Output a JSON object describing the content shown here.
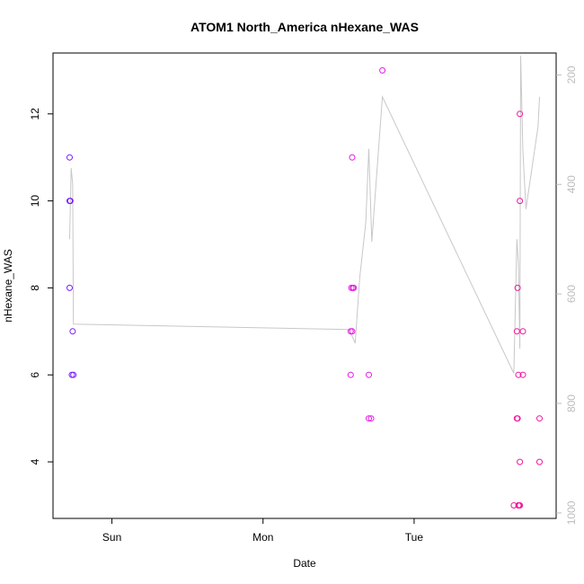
{
  "chart_data": {
    "type": "scatter",
    "title": "ATOM1 North_America nHexane_WAS",
    "xlabel": "Date",
    "ylabel": "nHexane_WAS",
    "x_ticks": [
      "Sun",
      "Mon",
      "Tue"
    ],
    "x_tick_values": [
      1.0,
      2.0,
      3.0
    ],
    "xlim": [
      0.61,
      3.94
    ],
    "ylim": [
      2.7,
      13.4
    ],
    "y_ticks": [
      4,
      6,
      8,
      10,
      12
    ],
    "right_axis": {
      "ticks": [
        200,
        400,
        600,
        800,
        1000
      ],
      "lim": [
        1010,
        160
      ],
      "color": "#bdbdbd"
    },
    "grid": false,
    "points": [
      {
        "x": 0.72,
        "y": 11,
        "color": "#7a1bff"
      },
      {
        "x": 0.72,
        "y": 10,
        "color": "#7a1bff"
      },
      {
        "x": 0.725,
        "y": 10,
        "color": "#7a1bff"
      },
      {
        "x": 0.72,
        "y": 8,
        "color": "#7a1bff"
      },
      {
        "x": 0.74,
        "y": 7,
        "color": "#7a1bff"
      },
      {
        "x": 0.735,
        "y": 6,
        "color": "#7a1bff"
      },
      {
        "x": 0.745,
        "y": 6,
        "color": "#7a1bff"
      },
      {
        "x": 2.59,
        "y": 11,
        "color": "#e619e6"
      },
      {
        "x": 2.585,
        "y": 8,
        "color": "#e619e6"
      },
      {
        "x": 2.595,
        "y": 8,
        "color": "#e619e6"
      },
      {
        "x": 2.6,
        "y": 8,
        "color": "#e619e6"
      },
      {
        "x": 2.58,
        "y": 7,
        "color": "#e619e6"
      },
      {
        "x": 2.59,
        "y": 7,
        "color": "#e619e6"
      },
      {
        "x": 2.58,
        "y": 6,
        "color": "#e619e6"
      },
      {
        "x": 2.7,
        "y": 6,
        "color": "#e619e6"
      },
      {
        "x": 2.7,
        "y": 5,
        "color": "#e619e6"
      },
      {
        "x": 2.715,
        "y": 5,
        "color": "#e619e6"
      },
      {
        "x": 2.79,
        "y": 13,
        "color": "#e619e6"
      },
      {
        "x": 3.7,
        "y": 12,
        "color": "#f2179e"
      },
      {
        "x": 3.7,
        "y": 10,
        "color": "#f2179e"
      },
      {
        "x": 3.685,
        "y": 8,
        "color": "#f2179e"
      },
      {
        "x": 3.68,
        "y": 7,
        "color": "#f2179e"
      },
      {
        "x": 3.72,
        "y": 7,
        "color": "#f2179e"
      },
      {
        "x": 3.69,
        "y": 6,
        "color": "#f2179e"
      },
      {
        "x": 3.72,
        "y": 6,
        "color": "#f2179e"
      },
      {
        "x": 3.68,
        "y": 5,
        "color": "#f2179e"
      },
      {
        "x": 3.685,
        "y": 5,
        "color": "#f2179e"
      },
      {
        "x": 3.83,
        "y": 5,
        "color": "#f2179e"
      },
      {
        "x": 3.7,
        "y": 4,
        "color": "#f2179e"
      },
      {
        "x": 3.83,
        "y": 4,
        "color": "#f2179e"
      },
      {
        "x": 3.66,
        "y": 3,
        "color": "#f2179e"
      },
      {
        "x": 3.69,
        "y": 3,
        "color": "#f2179e"
      },
      {
        "x": 3.695,
        "y": 3,
        "color": "#f2179e"
      },
      {
        "x": 3.7,
        "y": 3,
        "color": "#f2179e"
      }
    ],
    "line": {
      "color": "#c8c8c8",
      "note_axis": "right",
      "points": [
        [
          0.72,
          500
        ],
        [
          0.73,
          370
        ],
        [
          0.74,
          400
        ],
        [
          0.745,
          655
        ],
        [
          2.57,
          665
        ],
        [
          2.61,
          690
        ],
        [
          2.64,
          570
        ],
        [
          2.68,
          470
        ],
        [
          2.7,
          335
        ],
        [
          2.72,
          505
        ],
        [
          2.79,
          240
        ],
        [
          3.66,
          745
        ],
        [
          3.68,
          500
        ],
        [
          3.69,
          545
        ],
        [
          3.7,
          700
        ],
        [
          3.705,
          165
        ],
        [
          3.72,
          340
        ],
        [
          3.74,
          445
        ],
        [
          3.82,
          295
        ],
        [
          3.83,
          240
        ]
      ]
    }
  }
}
